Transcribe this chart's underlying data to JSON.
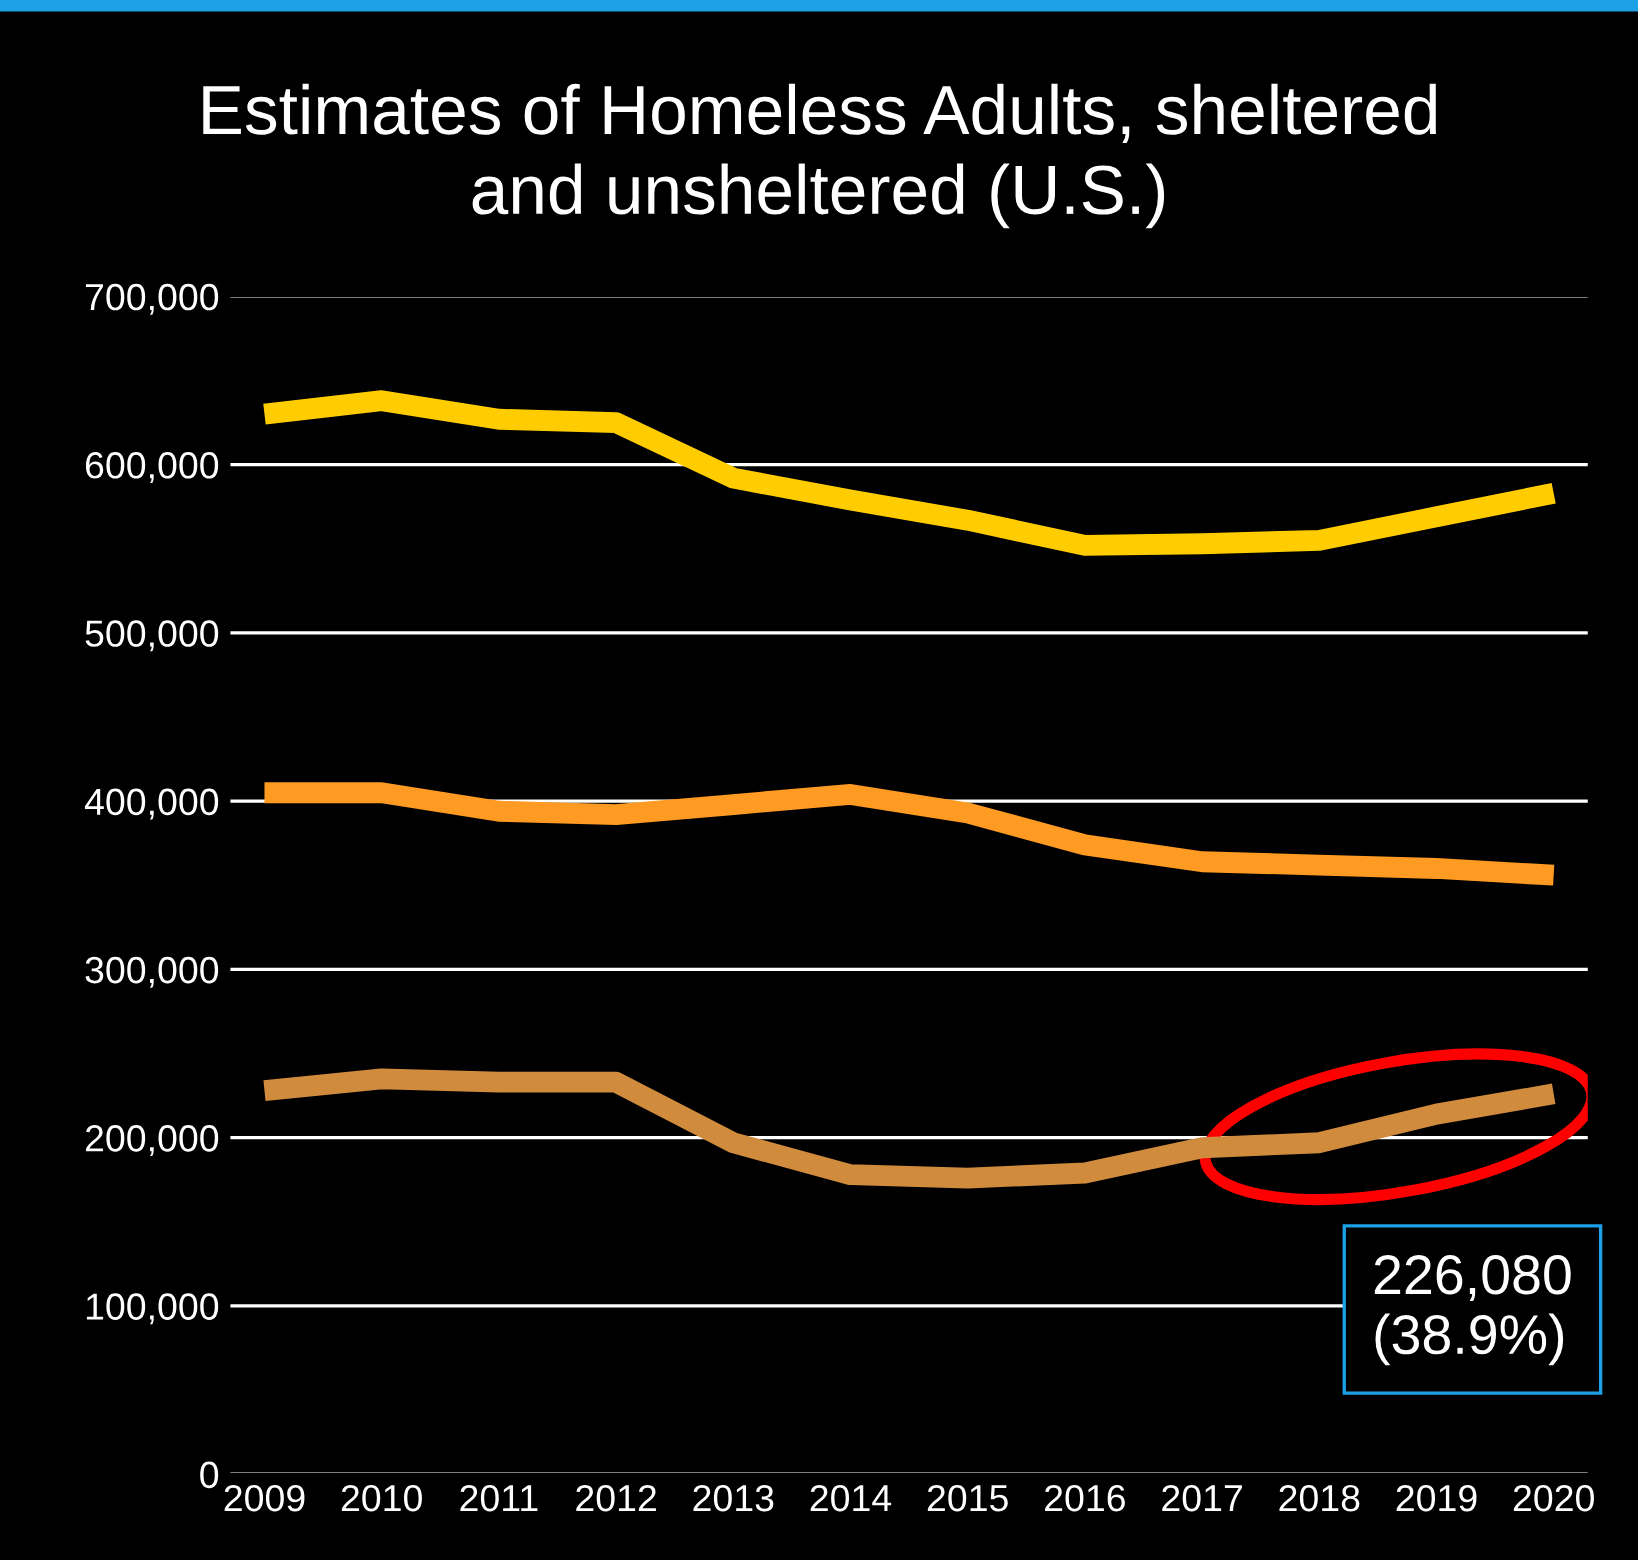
{
  "chart_data": {
    "type": "line",
    "title": "Estimates of Homeless Adults, sheltered\nand unsheltered (U.S.)",
    "categories": [
      "2009",
      "2010",
      "2011",
      "2012",
      "2013",
      "2014",
      "2015",
      "2016",
      "2017",
      "2018",
      "2019",
      "2020"
    ],
    "series": [
      {
        "color": "#ffcc00",
        "values": [
          630000,
          638000,
          627000,
          625000,
          592000,
          579000,
          567000,
          552000,
          553000,
          555000,
          569000,
          583000
        ]
      },
      {
        "color": "#ff9a22",
        "values": [
          405000,
          405000,
          394000,
          392000,
          398000,
          404000,
          393000,
          374000,
          364000,
          362000,
          360000,
          356000
        ]
      },
      {
        "color": "#d18b3c",
        "values": [
          228000,
          235000,
          233000,
          233000,
          197000,
          178000,
          176000,
          179000,
          194000,
          197000,
          214000,
          226080
        ]
      }
    ],
    "ylim": [
      0,
      700000
    ],
    "yticks": [
      {
        "value": 0,
        "label": "0"
      },
      {
        "value": 100000,
        "label": "100,000"
      },
      {
        "value": 200000,
        "label": "200,000"
      },
      {
        "value": 300000,
        "label": "300,000"
      },
      {
        "value": 400000,
        "label": "400,000"
      },
      {
        "value": 500000,
        "label": "500,000"
      },
      {
        "value": 600000,
        "label": "600,000"
      },
      {
        "value": 700000,
        "label": "700,000"
      }
    ],
    "grid": "y",
    "marker": "none",
    "line_style": "solid",
    "annotations": [
      {
        "text": "226,080\n(38.9%)",
        "x": "2020",
        "y": 226080
      }
    ]
  }
}
